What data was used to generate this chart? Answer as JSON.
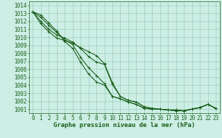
{
  "title": "Graphe pression niveau de la mer (hPa)",
  "background_color": "#cceee4",
  "grid_color": "#99ccbb",
  "line_color": "#1a5e1a",
  "xlim": [
    -0.5,
    23.5
  ],
  "ylim": [
    1000.5,
    1014.5
  ],
  "xticks": [
    0,
    1,
    2,
    3,
    4,
    5,
    6,
    7,
    8,
    9,
    10,
    11,
    12,
    13,
    14,
    15,
    16,
    17,
    18,
    19,
    20,
    21,
    22,
    23
  ],
  "yticks": [
    1001,
    1002,
    1003,
    1004,
    1005,
    1006,
    1007,
    1008,
    1009,
    1010,
    1011,
    1012,
    1013,
    1014
  ],
  "series": [
    [
      1013.2,
      1012.8,
      1011.8,
      1010.8,
      1009.5,
      1008.6,
      1006.9,
      1005.4,
      1004.4,
      1004.0,
      1002.6,
      1002.3,
      1001.9,
      1001.6,
      1001.1,
      1001.0,
      1001.0,
      1000.9,
      1000.8,
      1000.8,
      1001.0,
      1001.2,
      1001.6,
      1001.1
    ],
    [
      1013.2,
      1012.5,
      1011.5,
      1010.6,
      1009.7,
      1009.1,
      1007.5,
      1006.2,
      1005.2,
      1004.2,
      1002.6,
      1002.3,
      1001.9,
      1001.6,
      1001.1,
      1001.0,
      1001.0,
      1000.9,
      1000.8,
      1000.8,
      1001.0,
      1001.2,
      1001.6,
      1001.1
    ],
    [
      1013.2,
      1012.0,
      1011.0,
      1010.3,
      1009.9,
      1009.4,
      1008.6,
      1007.6,
      1006.9,
      1006.6,
      1004.1,
      1002.6,
      1002.1,
      1001.9,
      1001.3,
      1001.1,
      1001.0,
      1000.9,
      1000.9,
      1000.8,
      1001.0,
      1001.2,
      1001.6,
      1001.1
    ],
    [
      1013.2,
      1011.7,
      1010.7,
      1009.9,
      1009.6,
      1009.3,
      1008.7,
      1008.2,
      1007.7,
      1006.7,
      1004.3,
      1002.6,
      1002.1,
      1001.9,
      1001.3,
      1001.1,
      1001.0,
      1000.9,
      1000.9,
      1000.8,
      1001.0,
      1001.2,
      1001.6,
      1001.1
    ]
  ],
  "marker": "+",
  "markersize": 3,
  "linewidth": 0.8,
  "tick_fontsize": 5.5,
  "title_fontsize": 6.5
}
